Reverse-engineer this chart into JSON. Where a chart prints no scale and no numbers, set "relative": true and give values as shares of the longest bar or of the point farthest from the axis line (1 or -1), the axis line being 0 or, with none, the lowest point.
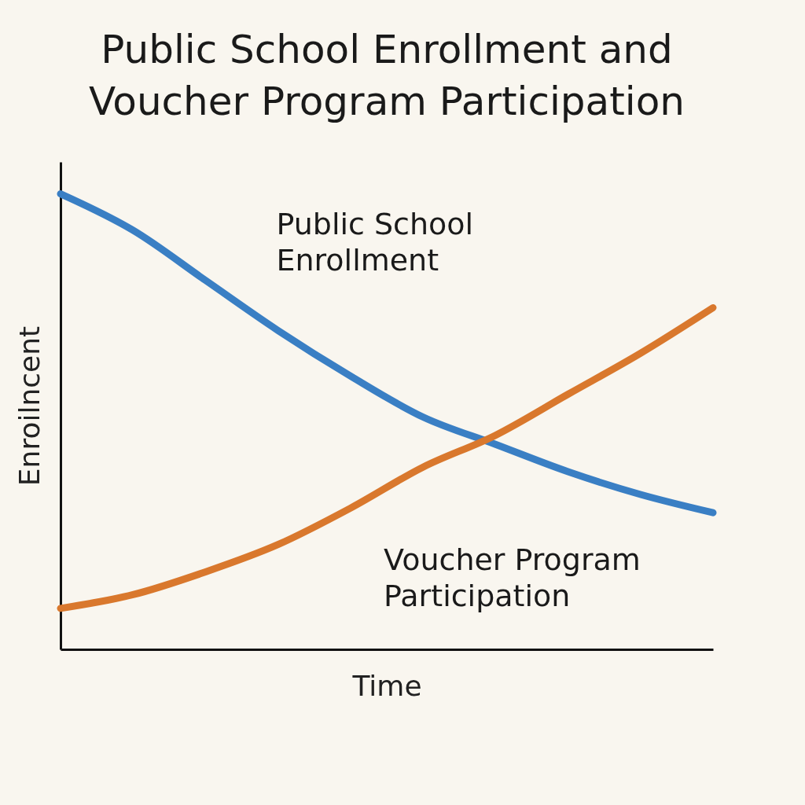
{
  "chart_data": {
    "type": "line",
    "title": "Public School Enrollment and Voucher Program Participation",
    "xlabel": "Time",
    "ylabel": "Enroilncent",
    "relative": true,
    "legend": false,
    "grid": false,
    "marker": "none",
    "line_style": "solid",
    "categories": [
      null,
      null,
      null,
      null,
      null,
      null,
      null,
      null,
      null,
      null
    ],
    "series": [
      {
        "name": "Public School Enrollment",
        "color": "#3a7fc4",
        "values": [
          1,
          0.92,
          0.81,
          0.7,
          0.6,
          0.51,
          0.45,
          0.39,
          0.34,
          0.3
        ]
      },
      {
        "name": "Voucher Program Participation",
        "color": "#d9782d",
        "values": [
          0.09,
          0.12,
          0.17,
          0.23,
          0.31,
          0.4,
          0.47,
          0.56,
          0.65,
          0.75
        ]
      }
    ]
  }
}
